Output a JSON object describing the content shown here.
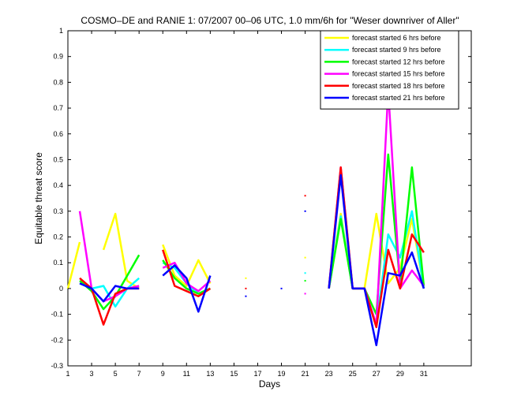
{
  "chart_data": {
    "type": "line",
    "title": "COSMO–DE and RANIE 1: 07/2007 00–06 UTC, 1.0 mm/6h for \"Weser downriver of Aller\"",
    "xlabel": "Days",
    "ylabel": "Equitable threat score",
    "xlim": [
      1,
      35
    ],
    "ylim": [
      -0.3,
      1
    ],
    "xticks": [
      1,
      3,
      5,
      7,
      9,
      11,
      13,
      15,
      17,
      19,
      21,
      23,
      25,
      27,
      29,
      31
    ],
    "yticks": [
      -0.3,
      -0.2,
      -0.1,
      0,
      0.1,
      0.2,
      0.3,
      0.4,
      0.5,
      0.6,
      0.7,
      0.8,
      0.9,
      1
    ],
    "ytick_labels": [
      "-0.3",
      "-0.2",
      "-0.1",
      "0",
      "0.1",
      "0.2",
      "0.3",
      "0.4",
      "0.5",
      "0.6",
      "0.7",
      "0.8",
      "0.9",
      "1"
    ],
    "legend_position": "top-right",
    "series": [
      {
        "name": "forecast started 6 hrs before",
        "color": "#ffff00",
        "values": [
          0.0,
          0.18,
          null,
          0.15,
          0.29,
          0.03,
          0.0,
          null,
          0.17,
          0.05,
          0.01,
          0.11,
          0.02,
          null,
          null,
          0.04,
          null,
          null,
          null,
          null,
          0.12,
          null,
          0.0,
          0.29,
          0.0,
          0.0,
          0.29,
          0.02,
          0.08,
          0.27,
          0.0
        ]
      },
      {
        "name": "forecast started 9 hrs before",
        "color": "#00ffff",
        "values": [
          null,
          0.02,
          0.0,
          0.01,
          -0.07,
          0.0,
          0.04,
          null,
          0.1,
          0.08,
          0.02,
          -0.02,
          0.0,
          null,
          null,
          null,
          null,
          null,
          null,
          null,
          0.06,
          null,
          0.0,
          0.28,
          0.0,
          0.0,
          -0.14,
          0.21,
          0.12,
          0.3,
          0.0
        ]
      },
      {
        "name": "forecast started 12 hrs before",
        "color": "#00ff00",
        "values": [
          null,
          0.03,
          -0.01,
          -0.08,
          -0.03,
          0.05,
          0.13,
          null,
          0.11,
          0.04,
          0.0,
          -0.02,
          0.0,
          null,
          null,
          null,
          null,
          null,
          null,
          null,
          0.03,
          null,
          0.0,
          0.27,
          0.0,
          0.0,
          -0.1,
          0.52,
          0.02,
          0.47,
          0.01
        ]
      },
      {
        "name": "forecast started 15 hrs before",
        "color": "#ff00ff",
        "values": [
          null,
          0.3,
          0.0,
          -0.05,
          -0.03,
          0.0,
          0.01,
          null,
          0.08,
          0.1,
          0.02,
          -0.01,
          0.03,
          null,
          null,
          null,
          null,
          null,
          null,
          null,
          -0.02,
          null,
          0.0,
          0.47,
          0.0,
          0.0,
          -0.14,
          0.77,
          0.0,
          0.07,
          0.01
        ]
      },
      {
        "name": "forecast started 18 hrs before",
        "color": "#ff0000",
        "values": [
          null,
          0.04,
          0.0,
          -0.14,
          -0.02,
          0.0,
          0.0,
          null,
          0.15,
          0.01,
          -0.01,
          -0.03,
          0.0,
          null,
          null,
          0.0,
          null,
          null,
          null,
          null,
          0.36,
          null,
          0.0,
          0.47,
          0.0,
          0.0,
          -0.15,
          0.15,
          0.0,
          0.21,
          0.14
        ]
      },
      {
        "name": "forecast started 21 hrs before",
        "color": "#0000ff",
        "values": [
          null,
          0.02,
          0.0,
          -0.05,
          0.01,
          0.0,
          0.0,
          null,
          0.05,
          0.09,
          0.04,
          -0.09,
          0.05,
          null,
          null,
          -0.03,
          null,
          null,
          0.0,
          null,
          0.3,
          null,
          0.0,
          0.44,
          0.0,
          0.0,
          -0.22,
          0.06,
          0.05,
          0.14,
          0.0
        ]
      }
    ]
  }
}
